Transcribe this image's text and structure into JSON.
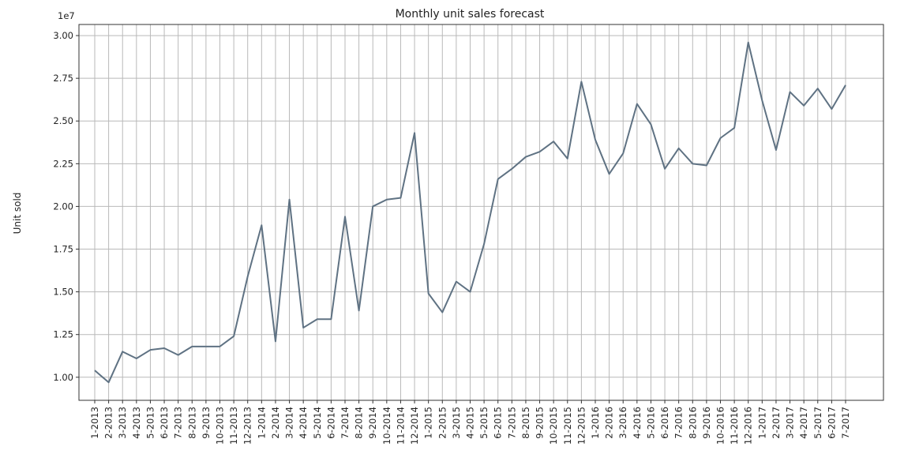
{
  "chart_data": {
    "type": "line",
    "title": "Monthly unit sales forecast",
    "xlabel": "",
    "ylabel": "Unit sold",
    "y_offset_label": "1e7",
    "y_scale": 10000000,
    "ylim": [
      0.865,
      3.065
    ],
    "yticks": [
      "1.00",
      "1.25",
      "1.50",
      "1.75",
      "2.00",
      "2.25",
      "2.50",
      "2.75",
      "3.00"
    ],
    "yticks_values": [
      1.0,
      1.25,
      1.5,
      1.75,
      2.0,
      2.25,
      2.5,
      2.75,
      3.0
    ],
    "grid": true,
    "line_color": "#5f7283",
    "categories": [
      "1-2013",
      "2-2013",
      "3-2013",
      "4-2013",
      "5-2013",
      "6-2013",
      "7-2013",
      "8-2013",
      "9-2013",
      "10-2013",
      "11-2013",
      "12-2013",
      "1-2014",
      "2-2014",
      "3-2014",
      "4-2014",
      "5-2014",
      "6-2014",
      "7-2014",
      "8-2014",
      "9-2014",
      "10-2014",
      "11-2014",
      "12-2014",
      "1-2015",
      "2-2015",
      "3-2015",
      "4-2015",
      "5-2015",
      "6-2015",
      "7-2015",
      "8-2015",
      "9-2015",
      "10-2015",
      "11-2015",
      "12-2015",
      "1-2016",
      "2-2016",
      "3-2016",
      "4-2016",
      "5-2016",
      "6-2016",
      "7-2016",
      "8-2016",
      "9-2016",
      "10-2016",
      "11-2016",
      "12-2016",
      "1-2017",
      "2-2017",
      "3-2017",
      "4-2017",
      "5-2017",
      "6-2017",
      "7-2017"
    ],
    "values": [
      1.04,
      0.97,
      1.15,
      1.11,
      1.16,
      1.17,
      1.13,
      1.18,
      1.18,
      1.18,
      1.24,
      1.59,
      1.89,
      1.21,
      2.04,
      1.29,
      1.34,
      1.34,
      1.94,
      1.39,
      2.0,
      2.04,
      2.05,
      2.43,
      1.49,
      1.38,
      1.56,
      1.5,
      1.78,
      2.16,
      2.22,
      2.29,
      2.32,
      2.38,
      2.28,
      2.73,
      2.39,
      2.19,
      2.31,
      2.6,
      2.48,
      2.22,
      2.34,
      2.25,
      2.24,
      2.4,
      2.46,
      2.96,
      2.62,
      2.33,
      2.67,
      2.59,
      2.69,
      2.57,
      2.71
    ]
  }
}
